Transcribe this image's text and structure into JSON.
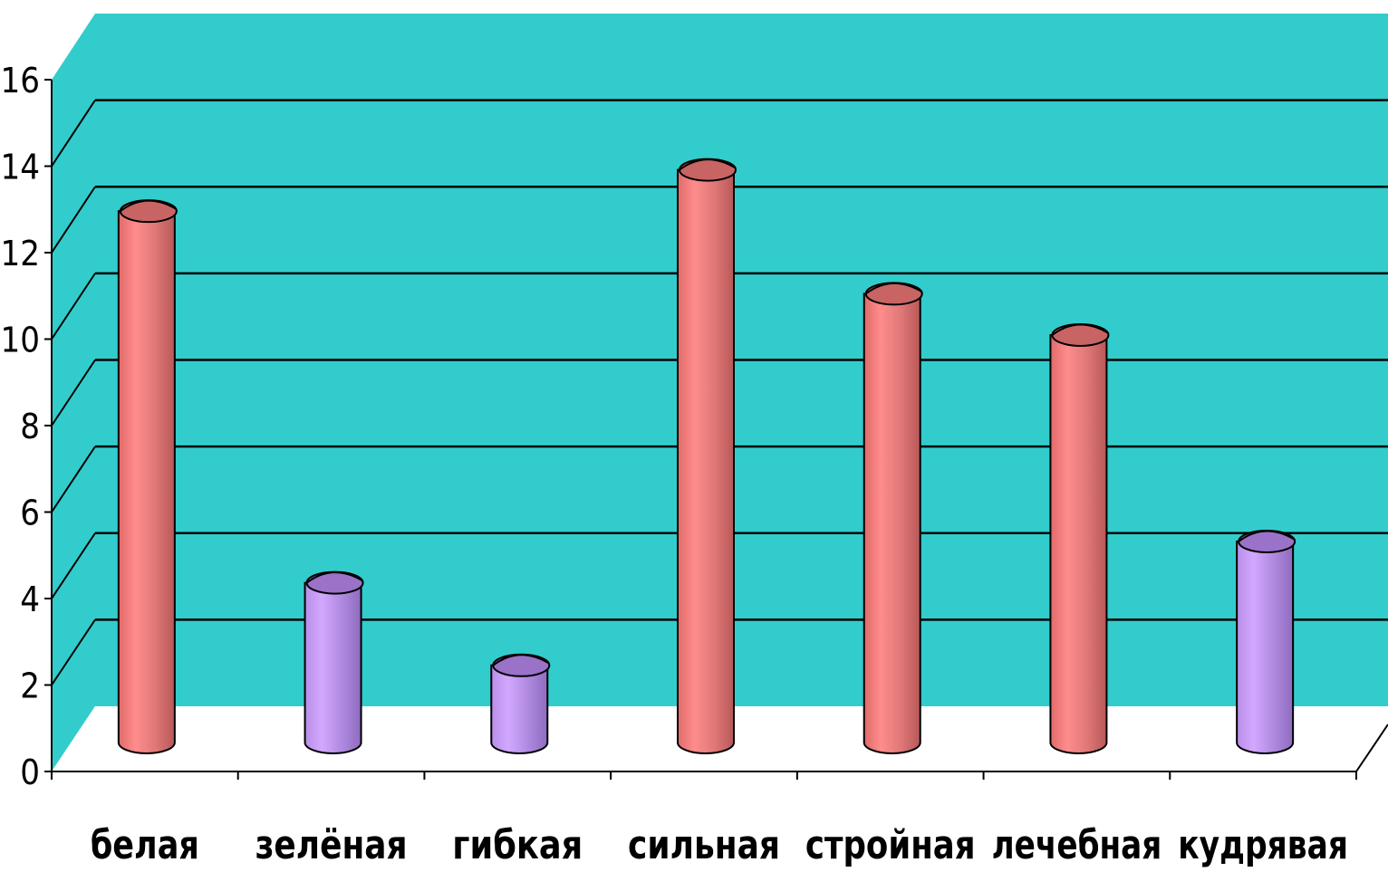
{
  "chart_data": {
    "type": "bar",
    "style": "3d-cylinder",
    "title": "",
    "xlabel": "",
    "ylabel": "",
    "categories": [
      "белая",
      "зелёная",
      "гибкая",
      "сильная",
      "стройная",
      "лечебная",
      "кудрявая"
    ],
    "values": [
      13,
      4,
      2,
      14,
      11,
      10,
      5
    ],
    "bar_colors": [
      "#f08080",
      "#c8a0f8",
      "#c8a0f8",
      "#f08080",
      "#f08080",
      "#f08080",
      "#c8a0f8"
    ],
    "ylim": [
      0,
      16
    ],
    "yticks": [
      "0",
      "2",
      "4",
      "6",
      "8",
      "10",
      "12",
      "14",
      "16"
    ],
    "grid": true,
    "legend": "none",
    "colors": {
      "back_wall": "#33cccc",
      "floor": "#ffffff",
      "grid": "#000000",
      "red_bar": "#f08080",
      "purple_bar": "#c8a0f8"
    }
  }
}
